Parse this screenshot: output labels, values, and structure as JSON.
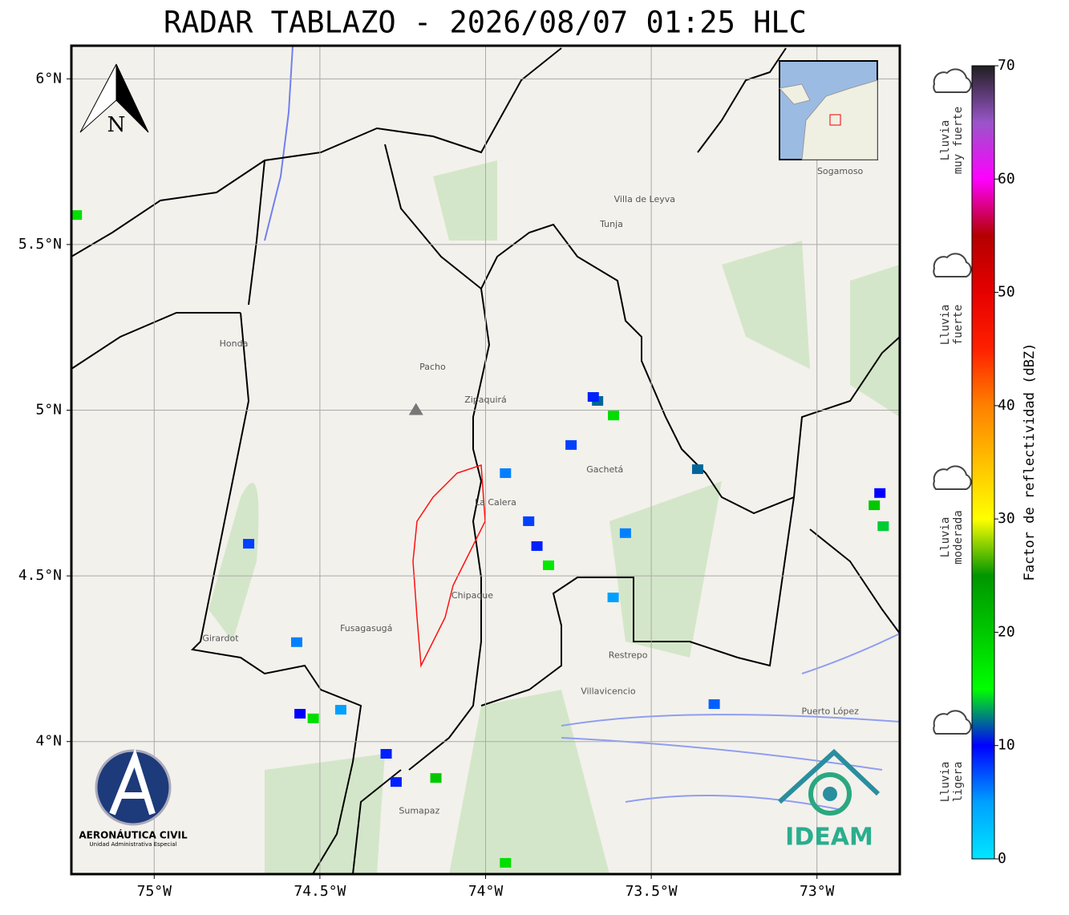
{
  "title": "RADAR TABLAZO - 2026/08/07 01:25 HLC",
  "map": {
    "lonlim": [
      -75.25,
      -72.75
    ],
    "latlim": [
      3.6,
      6.1
    ],
    "lon_ticks": [
      {
        "value": -75,
        "label": "75°W"
      },
      {
        "value": -74.5,
        "label": "74.5°W"
      },
      {
        "value": -74,
        "label": "74°W"
      },
      {
        "value": -73.5,
        "label": "73.5°W"
      },
      {
        "value": -73,
        "label": "73°W"
      }
    ],
    "lat_ticks": [
      {
        "value": 6,
        "label": "6°N"
      },
      {
        "value": 5.5,
        "label": "5.5°N"
      },
      {
        "value": 5,
        "label": "5°N"
      },
      {
        "value": 4.5,
        "label": "4.5°N"
      },
      {
        "value": 4,
        "label": "4°N"
      }
    ],
    "radar_site": {
      "lon": -74.21,
      "lat": 5.0
    },
    "places": [
      {
        "name": "Villa de Leyva",
        "lon": -73.52,
        "lat": 5.635
      },
      {
        "name": "Tunja",
        "lon": -73.62,
        "lat": 5.56
      },
      {
        "name": "Sogamoso",
        "lon": -72.93,
        "lat": 5.72
      },
      {
        "name": "Zipaquirá",
        "lon": -74.0,
        "lat": 5.03
      },
      {
        "name": "Pacho",
        "lon": -74.16,
        "lat": 5.13
      },
      {
        "name": "La Calera",
        "lon": -73.97,
        "lat": 4.72
      },
      {
        "name": "Fusagasugá",
        "lon": -74.36,
        "lat": 4.34
      },
      {
        "name": "Villavicencio",
        "lon": -73.63,
        "lat": 4.15
      },
      {
        "name": "Girardot",
        "lon": -74.8,
        "lat": 4.31
      },
      {
        "name": "Chipaque",
        "lon": -74.04,
        "lat": 4.44
      },
      {
        "name": "Gachetá",
        "lon": -73.64,
        "lat": 4.82
      },
      {
        "name": "Honda",
        "lon": -74.76,
        "lat": 5.2
      },
      {
        "name": "Restrepo",
        "lon": -73.57,
        "lat": 4.26
      },
      {
        "name": "Puerto López",
        "lon": -72.96,
        "lat": 4.09
      },
      {
        "name": "Sumapaz",
        "lon": -74.2,
        "lat": 3.79
      }
    ],
    "echoes": [
      {
        "lon": -75.235,
        "lat": 5.589,
        "dbz": 18
      },
      {
        "lon": -73.662,
        "lat": 5.028,
        "dbz": 12
      },
      {
        "lon": -73.614,
        "lat": 4.984,
        "dbz": 18
      },
      {
        "lon": -73.675,
        "lat": 5.04,
        "dbz": 9
      },
      {
        "lon": -73.742,
        "lat": 4.895,
        "dbz": 8
      },
      {
        "lon": -73.94,
        "lat": 4.81,
        "dbz": 6
      },
      {
        "lon": -73.87,
        "lat": 4.665,
        "dbz": 8
      },
      {
        "lon": -73.845,
        "lat": 4.59,
        "dbz": 9
      },
      {
        "lon": -73.81,
        "lat": 4.532,
        "dbz": 17
      },
      {
        "lon": -73.36,
        "lat": 4.822,
        "dbz": 12
      },
      {
        "lon": -72.827,
        "lat": 4.713,
        "dbz": 20
      },
      {
        "lon": -72.8,
        "lat": 4.65,
        "dbz": 14
      },
      {
        "lon": -72.81,
        "lat": 4.75,
        "dbz": 10
      },
      {
        "lon": -74.715,
        "lat": 4.597,
        "dbz": 8
      },
      {
        "lon": -74.57,
        "lat": 4.3,
        "dbz": 6
      },
      {
        "lon": -74.56,
        "lat": 4.084,
        "dbz": 10
      },
      {
        "lon": -74.52,
        "lat": 4.07,
        "dbz": 18
      },
      {
        "lon": -74.437,
        "lat": 4.096,
        "dbz": 5
      },
      {
        "lon": -74.3,
        "lat": 3.963,
        "dbz": 9
      },
      {
        "lon": -74.27,
        "lat": 3.878,
        "dbz": 9
      },
      {
        "lon": -74.15,
        "lat": 3.89,
        "dbz": 20
      },
      {
        "lon": -73.94,
        "lat": 3.634,
        "dbz": 18
      },
      {
        "lon": -73.31,
        "lat": 4.113,
        "dbz": 7
      },
      {
        "lon": -73.578,
        "lat": 4.629,
        "dbz": 6
      },
      {
        "lon": -73.615,
        "lat": 4.435,
        "dbz": 5
      }
    ]
  },
  "colorbar": {
    "label": "Factor de reflectividad (dBZ)",
    "lim": [
      0,
      70
    ],
    "ticks": [
      0,
      10,
      20,
      30,
      40,
      50,
      60,
      70
    ],
    "colormap": [
      "#00e6ff",
      "#00a0ff",
      "#0000ff",
      "#00ff00",
      "#00c800",
      "#009600",
      "#ffff00",
      "#ffc000",
      "#ff8000",
      "#ff2000",
      "#e60000",
      "#b40000",
      "#ff00ff",
      "#9955c9",
      "#202020"
    ]
  },
  "intensity_legend": [
    {
      "lines": [
        "Lluvia",
        "muy fuerte"
      ]
    },
    {
      "lines": [
        "Lluvia",
        "fuerte"
      ]
    },
    {
      "lines": [
        "Lluvia",
        "moderada"
      ]
    },
    {
      "lines": [
        "Lluvia",
        "ligera"
      ]
    }
  ],
  "north_label": "N",
  "logos": {
    "aerocivil": [
      "AERONÁUTICA CIVIL",
      "Unidad Administrativa Especial"
    ],
    "ideam": "IDEAM"
  }
}
